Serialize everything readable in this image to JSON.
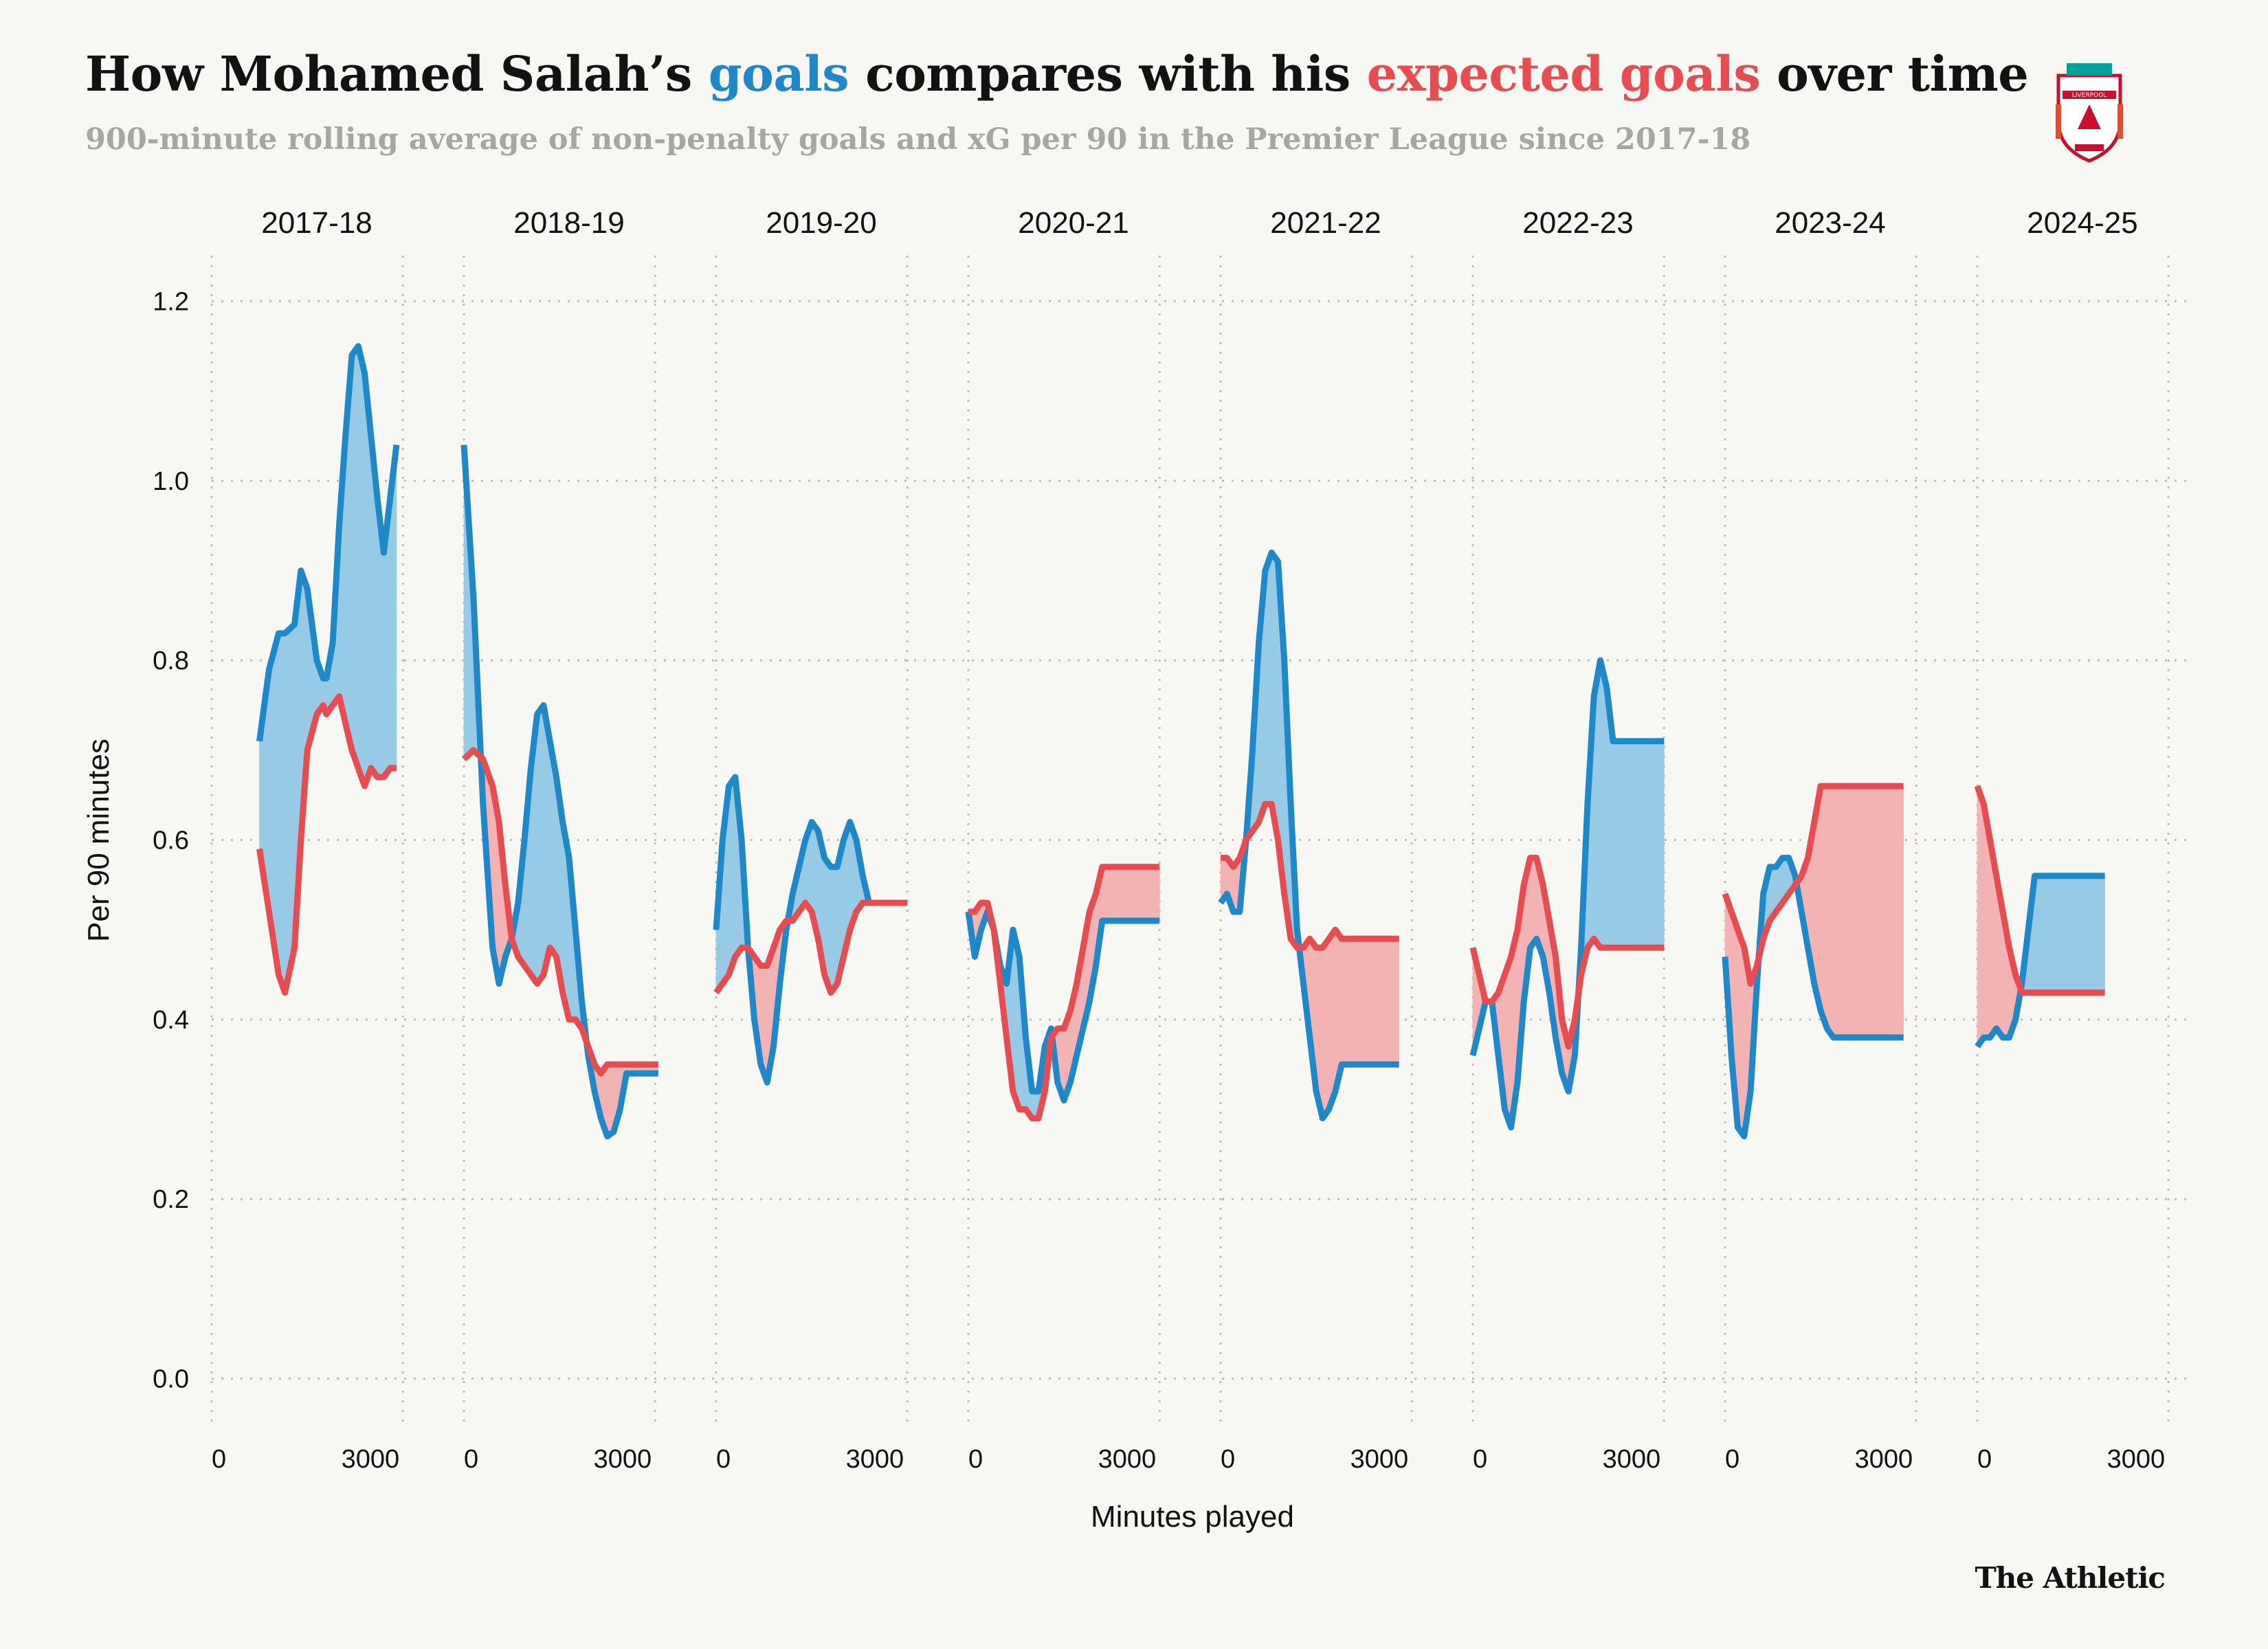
{
  "title": {
    "part1": "How Mohamed Salah’s ",
    "goals_word": "goals",
    "part2": " compares with his ",
    "xg_word": "expected goals",
    "part3": " over time"
  },
  "subtitle": "900-minute rolling average of non-penalty goals and xG per 90 in the Premier League since 2017-18",
  "logo": {
    "icon": "liverpool-crest-icon",
    "text": "LIVERPOOL"
  },
  "brand": "The Athletic",
  "colors": {
    "goals": "#1f88c9",
    "xg": "#e64c50",
    "goals_fill": "#97cbe5",
    "xg_fill": "#f3b3b3",
    "grid": "#bdbdb8",
    "background": "#f7f7f3"
  },
  "chart_data": {
    "type": "line",
    "ylabel": "Per 90 minutes",
    "xlabel": "Minutes played",
    "ylim": [
      -0.06,
      1.26
    ],
    "yticks": [
      0.0,
      0.2,
      0.4,
      0.6,
      0.8,
      1.0,
      1.2
    ],
    "ytick_labels": [
      "0.0",
      "0.2",
      "0.4",
      "0.6",
      "0.8",
      "1.0",
      "1.2"
    ],
    "xlim": [
      0,
      3300
    ],
    "xticks": [
      0,
      3000
    ],
    "xtick_labels": [
      "0",
      "3000"
    ],
    "grid": true,
    "series_names": {
      "goals": "goals",
      "xg": "expected goals"
    },
    "panels": [
      {
        "season": "2017-18",
        "x": [
          750,
          900,
          1050,
          1150,
          1300,
          1400,
          1500,
          1650,
          1750,
          1800,
          1900,
          2000,
          2100,
          2200,
          2300,
          2400,
          2500,
          2600,
          2700,
          2800,
          2900
        ],
        "goals": [
          0.71,
          0.79,
          0.83,
          0.83,
          0.84,
          0.9,
          0.88,
          0.8,
          0.78,
          0.78,
          0.82,
          0.95,
          1.05,
          1.14,
          1.15,
          1.12,
          1.05,
          0.98,
          0.92,
          0.98,
          1.04
        ],
        "xg": [
          0.59,
          0.52,
          0.45,
          0.43,
          0.48,
          0.6,
          0.7,
          0.74,
          0.75,
          0.74,
          0.75,
          0.76,
          0.73,
          0.7,
          0.68,
          0.66,
          0.68,
          0.67,
          0.67,
          0.68,
          0.68
        ]
      },
      {
        "season": "2018-19",
        "x": [
          0,
          150,
          300,
          450,
          550,
          650,
          750,
          850,
          950,
          1050,
          1150,
          1250,
          1350,
          1450,
          1550,
          1650,
          1750,
          1850,
          1950,
          2050,
          2150,
          2250,
          2350,
          2450,
          2550,
          2650,
          2750,
          2850,
          2950,
          3050
        ],
        "goals": [
          1.04,
          0.87,
          0.64,
          0.48,
          0.44,
          0.47,
          0.49,
          0.53,
          0.6,
          0.68,
          0.74,
          0.75,
          0.71,
          0.67,
          0.62,
          0.58,
          0.5,
          0.42,
          0.36,
          0.32,
          0.29,
          0.27,
          0.275,
          0.3,
          0.34,
          0.34,
          0.34,
          0.34,
          0.34,
          0.34
        ],
        "xg": [
          0.69,
          0.7,
          0.69,
          0.66,
          0.62,
          0.55,
          0.49,
          0.47,
          0.46,
          0.45,
          0.44,
          0.45,
          0.48,
          0.47,
          0.43,
          0.4,
          0.4,
          0.39,
          0.37,
          0.35,
          0.34,
          0.35,
          0.35,
          0.35,
          0.35,
          0.35,
          0.35,
          0.35,
          0.35,
          0.35
        ]
      },
      {
        "season": "2019-20",
        "x": [
          0,
          100,
          200,
          300,
          400,
          500,
          600,
          700,
          800,
          900,
          1000,
          1100,
          1200,
          1300,
          1400,
          1500,
          1600,
          1700,
          1800,
          1900,
          2000,
          2100,
          2200,
          2300,
          2400,
          2500,
          2600,
          2700,
          2800,
          2900,
          3000
        ],
        "goals": [
          0.5,
          0.6,
          0.66,
          0.67,
          0.6,
          0.48,
          0.4,
          0.35,
          0.33,
          0.37,
          0.44,
          0.5,
          0.54,
          0.57,
          0.6,
          0.62,
          0.61,
          0.58,
          0.57,
          0.57,
          0.6,
          0.62,
          0.6,
          0.56,
          0.53,
          0.53,
          0.53,
          0.53,
          0.53,
          0.53,
          0.53
        ],
        "xg": [
          0.43,
          0.44,
          0.45,
          0.47,
          0.48,
          0.48,
          0.47,
          0.46,
          0.46,
          0.48,
          0.5,
          0.51,
          0.51,
          0.52,
          0.53,
          0.52,
          0.49,
          0.45,
          0.43,
          0.44,
          0.47,
          0.5,
          0.52,
          0.53,
          0.53,
          0.53,
          0.53,
          0.53,
          0.53,
          0.53,
          0.53
        ]
      },
      {
        "season": "2020-21",
        "x": [
          0,
          100,
          200,
          300,
          400,
          500,
          600,
          700,
          800,
          900,
          1000,
          1100,
          1200,
          1300,
          1400,
          1500,
          1600,
          1700,
          1800,
          1900,
          2000,
          2100,
          2200,
          2300,
          2400,
          2500,
          2600,
          2700,
          2800,
          2900,
          3000
        ],
        "goals": [
          0.52,
          0.47,
          0.5,
          0.52,
          0.5,
          0.46,
          0.44,
          0.5,
          0.47,
          0.38,
          0.32,
          0.32,
          0.37,
          0.39,
          0.33,
          0.31,
          0.33,
          0.36,
          0.39,
          0.42,
          0.46,
          0.51,
          0.51,
          0.51,
          0.51,
          0.51,
          0.51,
          0.51,
          0.51,
          0.51,
          0.51
        ],
        "xg": [
          0.52,
          0.52,
          0.53,
          0.53,
          0.5,
          0.44,
          0.38,
          0.32,
          0.3,
          0.3,
          0.29,
          0.29,
          0.32,
          0.38,
          0.39,
          0.39,
          0.41,
          0.44,
          0.48,
          0.52,
          0.54,
          0.57,
          0.57,
          0.57,
          0.57,
          0.57,
          0.57,
          0.57,
          0.57,
          0.57,
          0.57
        ]
      },
      {
        "season": "2021-22",
        "x": [
          0,
          100,
          200,
          300,
          400,
          500,
          600,
          700,
          800,
          900,
          1000,
          1100,
          1200,
          1300,
          1400,
          1500,
          1600,
          1700,
          1800,
          1900,
          2000,
          2100,
          2200,
          2300,
          2400,
          2500,
          2600,
          2700,
          2800
        ],
        "goals": [
          0.53,
          0.54,
          0.52,
          0.52,
          0.6,
          0.7,
          0.82,
          0.9,
          0.92,
          0.91,
          0.8,
          0.64,
          0.5,
          0.44,
          0.38,
          0.32,
          0.29,
          0.3,
          0.32,
          0.35,
          0.35,
          0.35,
          0.35,
          0.35,
          0.35,
          0.35,
          0.35,
          0.35,
          0.35
        ],
        "xg": [
          0.58,
          0.58,
          0.57,
          0.58,
          0.6,
          0.61,
          0.62,
          0.64,
          0.64,
          0.6,
          0.54,
          0.49,
          0.48,
          0.48,
          0.49,
          0.48,
          0.48,
          0.49,
          0.5,
          0.49,
          0.49,
          0.49,
          0.49,
          0.49,
          0.49,
          0.49,
          0.49,
          0.49,
          0.49
        ]
      },
      {
        "season": "2022-23",
        "x": [
          0,
          100,
          200,
          300,
          400,
          500,
          600,
          700,
          800,
          900,
          1000,
          1100,
          1200,
          1300,
          1400,
          1500,
          1600,
          1700,
          1800,
          1900,
          2000,
          2100,
          2200,
          2300,
          2400,
          2500,
          2600,
          2700,
          2800,
          2900,
          3000
        ],
        "goals": [
          0.36,
          0.39,
          0.42,
          0.42,
          0.36,
          0.3,
          0.28,
          0.33,
          0.42,
          0.48,
          0.49,
          0.47,
          0.43,
          0.38,
          0.34,
          0.32,
          0.36,
          0.48,
          0.64,
          0.76,
          0.8,
          0.77,
          0.71,
          0.71,
          0.71,
          0.71,
          0.71,
          0.71,
          0.71,
          0.71,
          0.71
        ],
        "xg": [
          0.48,
          0.45,
          0.42,
          0.42,
          0.43,
          0.45,
          0.47,
          0.5,
          0.55,
          0.58,
          0.58,
          0.55,
          0.51,
          0.47,
          0.4,
          0.37,
          0.4,
          0.45,
          0.48,
          0.49,
          0.48,
          0.48,
          0.48,
          0.48,
          0.48,
          0.48,
          0.48,
          0.48,
          0.48,
          0.48,
          0.48
        ]
      },
      {
        "season": "2023-24",
        "x": [
          0,
          100,
          200,
          300,
          400,
          500,
          600,
          700,
          800,
          900,
          1000,
          1100,
          1200,
          1300,
          1400,
          1500,
          1600,
          1700,
          1800,
          1900,
          2000,
          2100,
          2200,
          2300,
          2400,
          2500,
          2600,
          2700,
          2800
        ],
        "goals": [
          0.47,
          0.36,
          0.28,
          0.27,
          0.32,
          0.44,
          0.54,
          0.57,
          0.57,
          0.58,
          0.58,
          0.56,
          0.52,
          0.48,
          0.44,
          0.41,
          0.39,
          0.38,
          0.38,
          0.38,
          0.38,
          0.38,
          0.38,
          0.38,
          0.38,
          0.38,
          0.38,
          0.38,
          0.38
        ],
        "xg": [
          0.54,
          0.52,
          0.5,
          0.48,
          0.44,
          0.46,
          0.49,
          0.51,
          0.52,
          0.53,
          0.54,
          0.55,
          0.56,
          0.58,
          0.62,
          0.66,
          0.66,
          0.66,
          0.66,
          0.66,
          0.66,
          0.66,
          0.66,
          0.66,
          0.66,
          0.66,
          0.66,
          0.66,
          0.66
        ]
      },
      {
        "season": "2024-25",
        "x": [
          0,
          100,
          200,
          300,
          400,
          500,
          600,
          700,
          800,
          900,
          1000,
          1100,
          1200,
          1300,
          1400,
          1500,
          1600,
          1700,
          1800,
          1900,
          2000
        ],
        "goals": [
          0.37,
          0.38,
          0.38,
          0.39,
          0.38,
          0.38,
          0.4,
          0.44,
          0.5,
          0.56,
          0.56,
          0.56,
          0.56,
          0.56,
          0.56,
          0.56,
          0.56,
          0.56,
          0.56,
          0.56,
          0.56
        ],
        "xg": [
          0.66,
          0.64,
          0.6,
          0.56,
          0.52,
          0.48,
          0.45,
          0.43,
          0.43,
          0.43,
          0.43,
          0.43,
          0.43,
          0.43,
          0.43,
          0.43,
          0.43,
          0.43,
          0.43,
          0.43,
          0.43
        ]
      }
    ]
  }
}
